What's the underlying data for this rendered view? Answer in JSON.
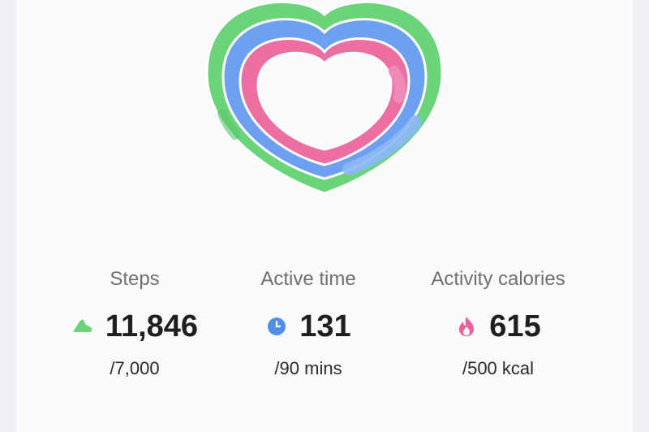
{
  "rings": {
    "colors": {
      "steps": "#6bd47b",
      "active_time": "#6ea0f2",
      "calories": "#ec6ea3"
    }
  },
  "stats": [
    {
      "key": "steps",
      "label": "Steps",
      "value": "11,846",
      "goal": "/7,000",
      "icon": "shoe-icon",
      "color": "#6bd47b"
    },
    {
      "key": "active_time",
      "label": "Active time",
      "value": "131",
      "goal": "/90 mins",
      "icon": "clock-icon",
      "color": "#4f8fe8"
    },
    {
      "key": "calories",
      "label": "Activity calories",
      "value": "615",
      "goal": "/500 kcal",
      "icon": "flame-icon",
      "color": "#ea5f9c"
    }
  ]
}
